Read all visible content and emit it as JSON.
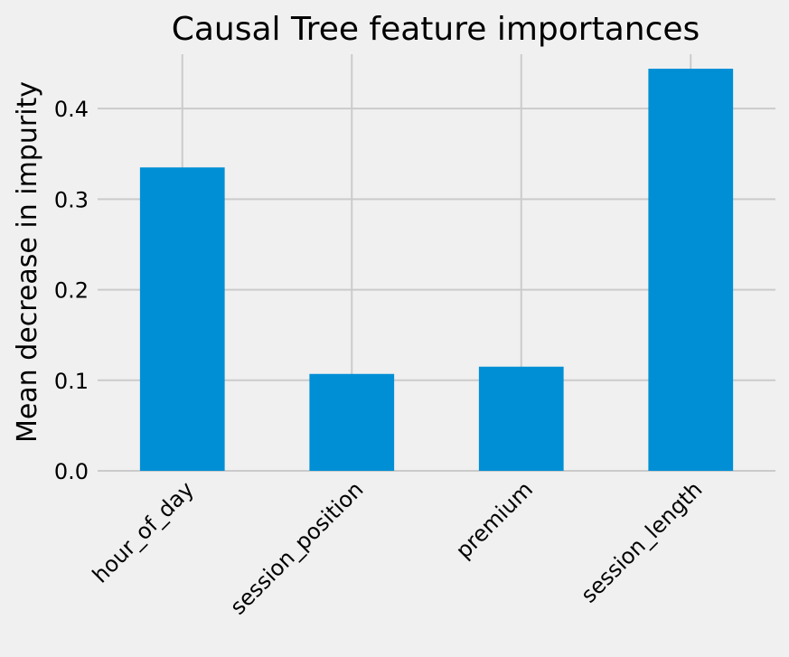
{
  "chart_data": {
    "type": "bar",
    "title": "Causal Tree feature importances",
    "xlabel": "",
    "ylabel": "Mean decrease in impurity",
    "categories": [
      "hour_of_day",
      "session_position",
      "premium",
      "session_length"
    ],
    "values": [
      0.335,
      0.107,
      0.115,
      0.444
    ],
    "ylim": [
      0,
      0.46
    ],
    "yticks": [
      0.0,
      0.1,
      0.2,
      0.3,
      0.4
    ],
    "ytick_labels": [
      "0.0",
      "0.1",
      "0.2",
      "0.3",
      "0.4"
    ],
    "bar_color": "#008fd5",
    "background_color": "#f0f0f0",
    "grid": true,
    "legend": "none"
  }
}
